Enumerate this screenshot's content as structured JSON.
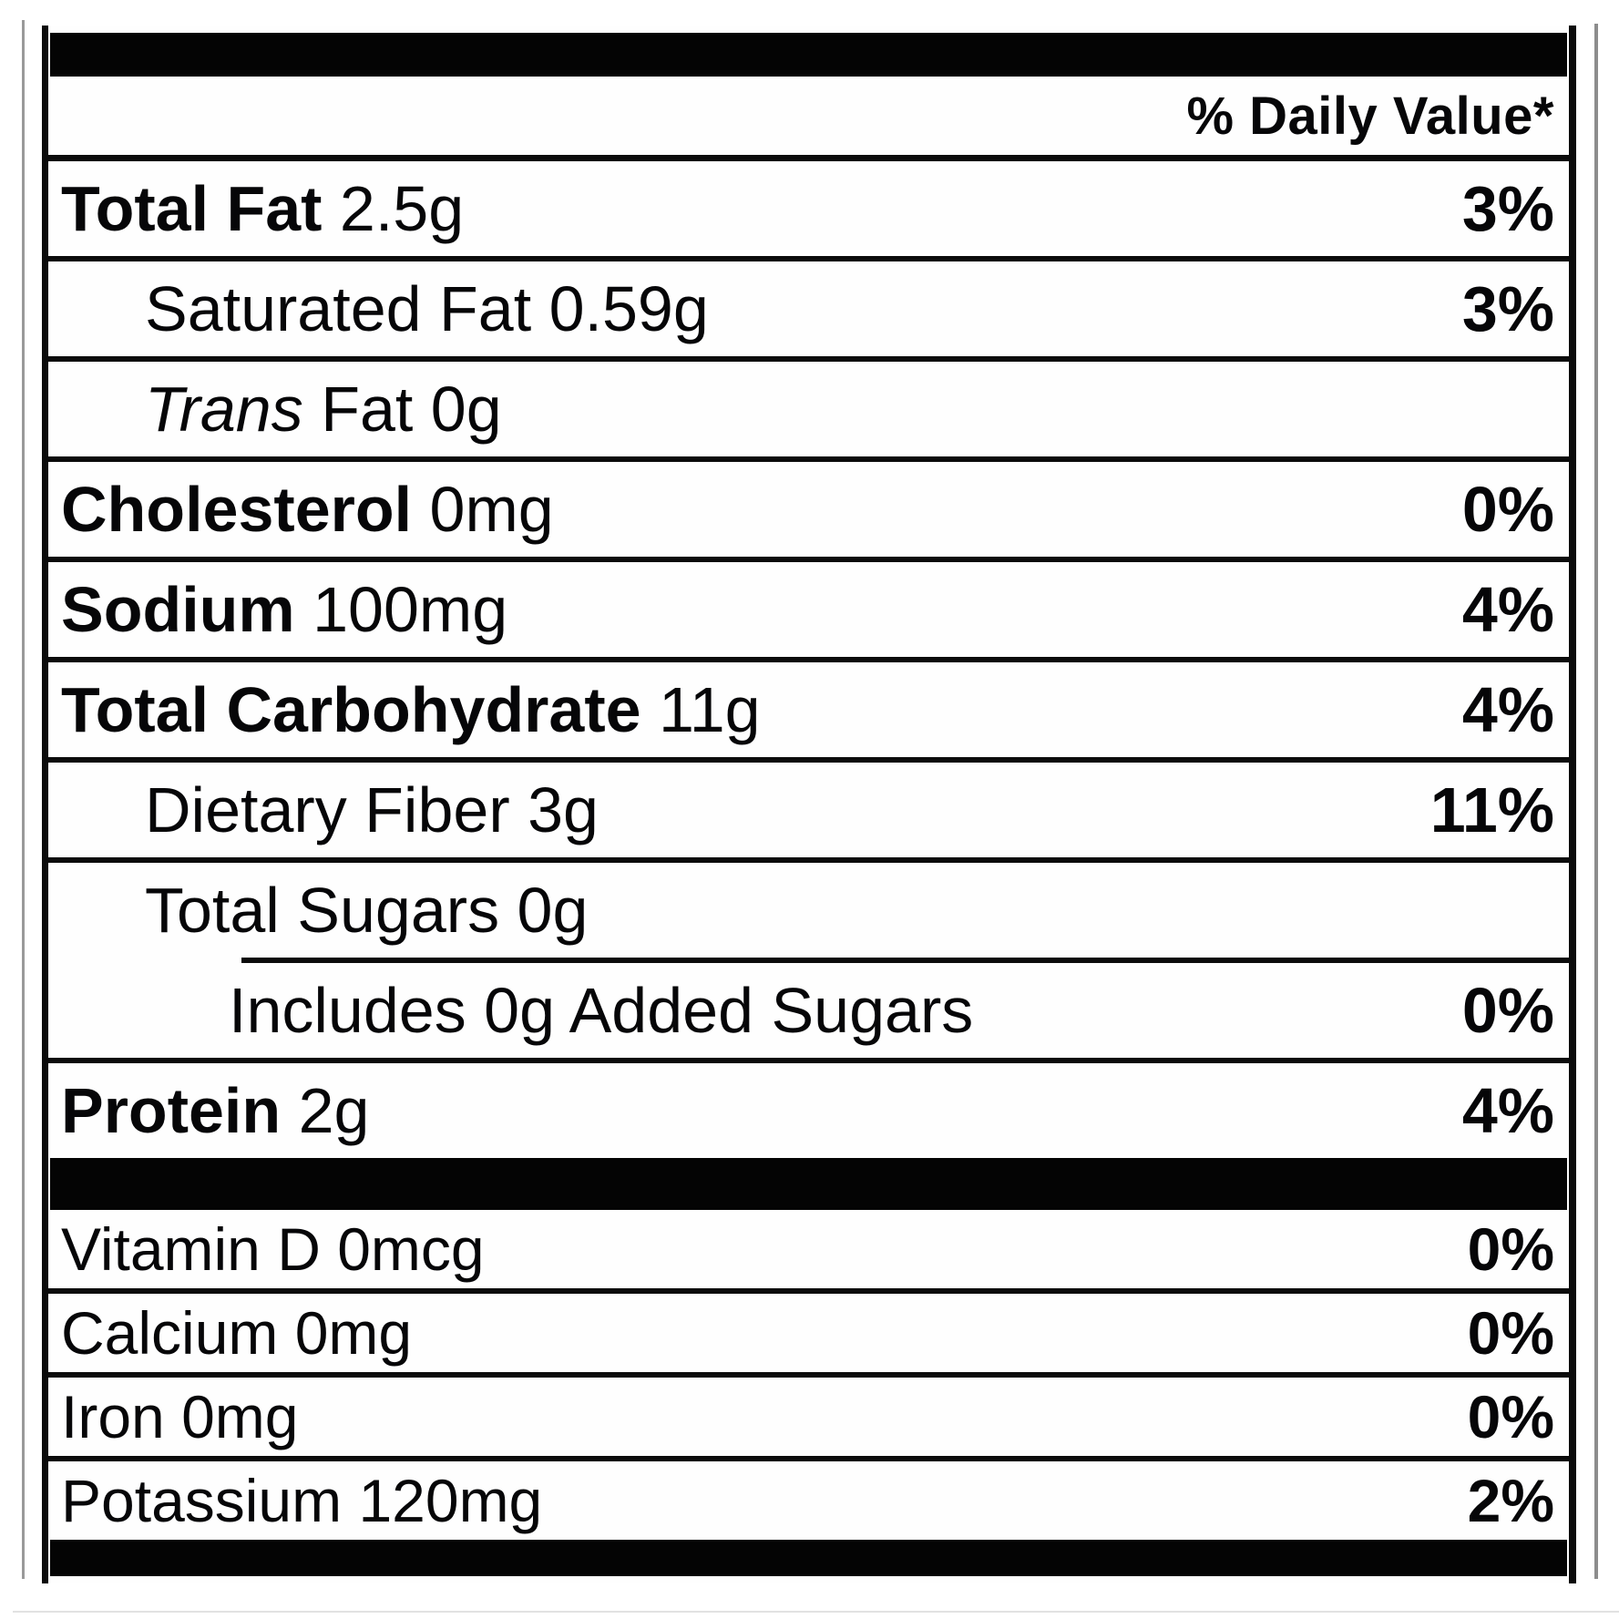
{
  "label": {
    "daily_value_header": "% Daily Value*",
    "rows": [
      {
        "segments": [
          {
            "text": "Total Fat",
            "style": "bold"
          },
          {
            "text": " 2.5g",
            "style": "regular"
          }
        ],
        "percent": "3%",
        "indent": 0,
        "small": false,
        "divider_below": "full"
      },
      {
        "segments": [
          {
            "text": "Saturated Fat 0.59g",
            "style": "regular"
          }
        ],
        "percent": "3%",
        "indent": 1,
        "small": false,
        "divider_below": "full"
      },
      {
        "segments": [
          {
            "text": "Trans",
            "style": "italic"
          },
          {
            "text": " Fat 0g",
            "style": "regular"
          }
        ],
        "percent": "",
        "indent": 1,
        "small": false,
        "divider_below": "full"
      },
      {
        "segments": [
          {
            "text": "Cholesterol",
            "style": "bold"
          },
          {
            "text": " 0mg",
            "style": "regular"
          }
        ],
        "percent": "0%",
        "indent": 0,
        "small": false,
        "divider_below": "full"
      },
      {
        "segments": [
          {
            "text": "Sodium",
            "style": "bold"
          },
          {
            "text": " 100mg",
            "style": "regular"
          }
        ],
        "percent": "4%",
        "indent": 0,
        "small": false,
        "divider_below": "full"
      },
      {
        "segments": [
          {
            "text": "Total Carbohydrate",
            "style": "bold"
          },
          {
            "text": " 11g",
            "style": "regular"
          }
        ],
        "percent": "4%",
        "indent": 0,
        "small": false,
        "divider_below": "full"
      },
      {
        "segments": [
          {
            "text": "Dietary Fiber 3g",
            "style": "regular"
          }
        ],
        "percent": "11%",
        "indent": 1,
        "small": false,
        "divider_below": "full"
      },
      {
        "segments": [
          {
            "text": "Total Sugars 0g",
            "style": "regular"
          }
        ],
        "percent": "",
        "indent": 1,
        "small": false,
        "divider_below": "partial"
      },
      {
        "segments": [
          {
            "text": "Includes 0g Added Sugars",
            "style": "regular"
          }
        ],
        "percent": "0%",
        "indent": 2,
        "small": false,
        "divider_below": "full"
      },
      {
        "segments": [
          {
            "text": "Protein",
            "style": "bold"
          },
          {
            "text": " 2g",
            "style": "regular"
          }
        ],
        "percent": "4%",
        "indent": 0,
        "small": false,
        "divider_below": "bar"
      },
      {
        "segments": [
          {
            "text": "Vitamin D 0mcg",
            "style": "regular"
          }
        ],
        "percent": "0%",
        "indent": 0,
        "small": true,
        "divider_below": "full"
      },
      {
        "segments": [
          {
            "text": "Calcium 0mg",
            "style": "regular"
          }
        ],
        "percent": "0%",
        "indent": 0,
        "small": true,
        "divider_below": "full"
      },
      {
        "segments": [
          {
            "text": "Iron 0mg",
            "style": "regular"
          }
        ],
        "percent": "0%",
        "indent": 0,
        "small": true,
        "divider_below": "full"
      },
      {
        "segments": [
          {
            "text": "Potassium 120mg",
            "style": "regular"
          }
        ],
        "percent": "2%",
        "indent": 0,
        "small": true,
        "divider_below": "bottom-bar"
      }
    ]
  }
}
